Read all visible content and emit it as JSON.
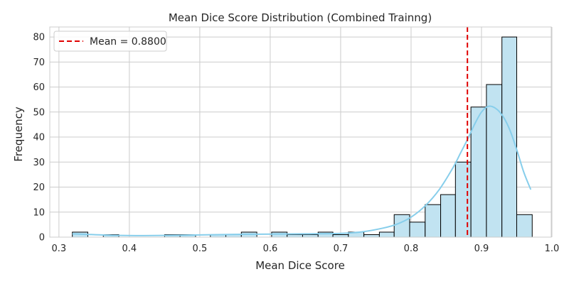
{
  "chart_data": {
    "type": "bar",
    "subtype": "histogram",
    "title": "Mean Dice Score Distribution (Combined Trainng)",
    "xlabel": "Mean Dice Score",
    "ylabel": "Frequency",
    "xlim": [
      0.287,
      0.999
    ],
    "ylim": [
      0,
      84
    ],
    "xticks": [
      "0.3",
      "0.4",
      "0.5",
      "0.6",
      "0.7",
      "0.8",
      "0.9",
      "1.0"
    ],
    "yticks": [
      "0",
      "10",
      "20",
      "30",
      "40",
      "50",
      "60",
      "70",
      "80"
    ],
    "grid": true,
    "bar_color": "#c1e3f1",
    "bar_edge_color": "#000000",
    "kde_color": "#87ceeb",
    "mean_line_color": "#e00000",
    "bins": [
      {
        "x0": 0.319,
        "x1": 0.341,
        "count": 2
      },
      {
        "x0": 0.341,
        "x1": 0.363,
        "count": 0
      },
      {
        "x0": 0.363,
        "x1": 0.385,
        "count": 1
      },
      {
        "x0": 0.385,
        "x1": 0.407,
        "count": 0
      },
      {
        "x0": 0.407,
        "x1": 0.428,
        "count": 0
      },
      {
        "x0": 0.428,
        "x1": 0.45,
        "count": 0
      },
      {
        "x0": 0.45,
        "x1": 0.472,
        "count": 1
      },
      {
        "x0": 0.472,
        "x1": 0.494,
        "count": 1
      },
      {
        "x0": 0.494,
        "x1": 0.515,
        "count": 0
      },
      {
        "x0": 0.515,
        "x1": 0.537,
        "count": 1
      },
      {
        "x0": 0.537,
        "x1": 0.559,
        "count": 1
      },
      {
        "x0": 0.559,
        "x1": 0.581,
        "count": 2
      },
      {
        "x0": 0.581,
        "x1": 0.602,
        "count": 0
      },
      {
        "x0": 0.602,
        "x1": 0.624,
        "count": 2
      },
      {
        "x0": 0.624,
        "x1": 0.646,
        "count": 1
      },
      {
        "x0": 0.646,
        "x1": 0.668,
        "count": 1
      },
      {
        "x0": 0.668,
        "x1": 0.689,
        "count": 2
      },
      {
        "x0": 0.689,
        "x1": 0.711,
        "count": 1
      },
      {
        "x0": 0.711,
        "x1": 0.733,
        "count": 2
      },
      {
        "x0": 0.733,
        "x1": 0.755,
        "count": 1
      },
      {
        "x0": 0.755,
        "x1": 0.776,
        "count": 2
      },
      {
        "x0": 0.776,
        "x1": 0.798,
        "count": 9
      },
      {
        "x0": 0.798,
        "x1": 0.82,
        "count": 6
      },
      {
        "x0": 0.82,
        "x1": 0.842,
        "count": 13
      },
      {
        "x0": 0.842,
        "x1": 0.863,
        "count": 17
      },
      {
        "x0": 0.863,
        "x1": 0.885,
        "count": 30
      },
      {
        "x0": 0.885,
        "x1": 0.907,
        "count": 52
      },
      {
        "x0": 0.907,
        "x1": 0.929,
        "count": 61
      },
      {
        "x0": 0.929,
        "x1": 0.95,
        "count": 80
      },
      {
        "x0": 0.95,
        "x1": 0.972,
        "count": 9
      }
    ],
    "kde": {
      "x": [
        0.319,
        0.35,
        0.38,
        0.42,
        0.46,
        0.5,
        0.55,
        0.6,
        0.65,
        0.7,
        0.73,
        0.76,
        0.78,
        0.8,
        0.82,
        0.84,
        0.86,
        0.87,
        0.88,
        0.89,
        0.9,
        0.91,
        0.92,
        0.93,
        0.94,
        0.95,
        0.96,
        0.97
      ],
      "y": [
        1.3,
        1.0,
        0.7,
        0.6,
        0.7,
        0.9,
        1.1,
        1.2,
        1.3,
        1.5,
        2.1,
        3.6,
        5.2,
        8.0,
        12.5,
        19.0,
        28.0,
        33.5,
        39.0,
        45.0,
        50.0,
        52.3,
        51.5,
        48.5,
        43.0,
        35.0,
        26.0,
        19.0
      ]
    },
    "mean": {
      "value": 0.88,
      "label": "Mean = 0.8800"
    },
    "legend": {
      "position": "top-left",
      "entries": [
        "Mean = 0.8800"
      ]
    }
  }
}
